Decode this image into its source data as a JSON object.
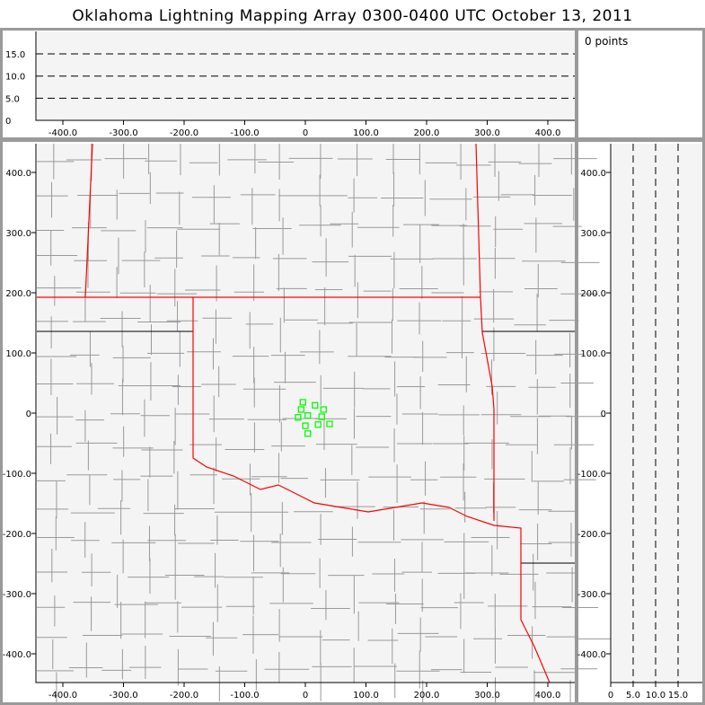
{
  "title": "Oklahoma Lightning Mapping Array   0300-0400 UTC  October 13, 2011",
  "info": {
    "points_label": "0 points"
  },
  "colors": {
    "background": "#f4f4f4",
    "state_border": "#ff0000",
    "county_border": "#999999",
    "source": "#00ff00"
  },
  "axes": {
    "x_ticks": [
      "-400.0",
      "-300.0",
      "-200.0",
      "-100.0",
      "0",
      "100.0",
      "200.0",
      "300.0",
      "400.0"
    ],
    "y_ticks": [
      "400.0",
      "300.0",
      "200.0",
      "100.0",
      "0",
      "-100.0",
      "-200.0",
      "-300.0",
      "-400.0"
    ],
    "alt_ticks": [
      "0",
      "5.0",
      "10.0",
      "15.0"
    ]
  },
  "sources_km": [
    [
      -4,
      18
    ],
    [
      -7,
      6
    ],
    [
      16,
      13
    ],
    [
      30,
      6
    ],
    [
      -12,
      -7
    ],
    [
      4,
      -4
    ],
    [
      27,
      -6
    ],
    [
      0,
      -21
    ],
    [
      21,
      -19
    ],
    [
      40,
      -18
    ],
    [
      4,
      -34
    ]
  ]
}
